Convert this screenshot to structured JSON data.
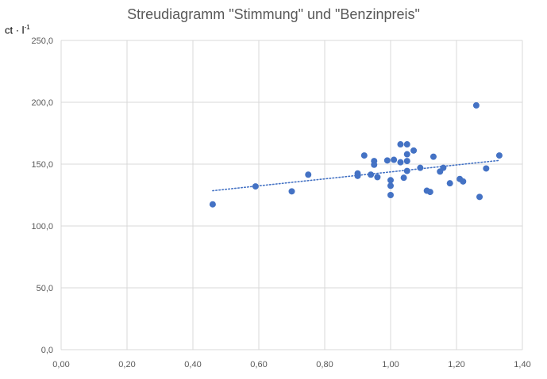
{
  "chart_data": {
    "type": "scatter",
    "title": "Streudiagramm \"Stimmung\" und \"Benzinpreis\"",
    "y_unit_base": "ct · l",
    "y_unit_exp": "-1",
    "xlim": [
      0,
      1.4
    ],
    "ylim": [
      0,
      250
    ],
    "x_ticks": [
      "0,00",
      "0,20",
      "0,40",
      "0,60",
      "0,80",
      "1,00",
      "1,20",
      "1,40"
    ],
    "y_ticks": [
      "0,0",
      "50,0",
      "100,0",
      "150,0",
      "200,0",
      "250,0"
    ],
    "grid": true,
    "trendline": {
      "style": "dotted linear",
      "x": [
        0.46,
        1.33
      ],
      "y": [
        128.5,
        153
      ]
    },
    "points": [
      {
        "x": 0.46,
        "y": 117.5
      },
      {
        "x": 0.59,
        "y": 132.0
      },
      {
        "x": 0.7,
        "y": 128.0
      },
      {
        "x": 0.75,
        "y": 141.5
      },
      {
        "x": 0.9,
        "y": 142.5
      },
      {
        "x": 0.9,
        "y": 140.5
      },
      {
        "x": 0.92,
        "y": 157.0
      },
      {
        "x": 0.94,
        "y": 141.5
      },
      {
        "x": 0.95,
        "y": 152.5
      },
      {
        "x": 0.95,
        "y": 149.5
      },
      {
        "x": 0.96,
        "y": 139.5
      },
      {
        "x": 0.99,
        "y": 153.0
      },
      {
        "x": 1.0,
        "y": 137.0
      },
      {
        "x": 1.0,
        "y": 132.5
      },
      {
        "x": 1.0,
        "y": 125.0
      },
      {
        "x": 1.01,
        "y": 153.5
      },
      {
        "x": 1.03,
        "y": 166.0
      },
      {
        "x": 1.03,
        "y": 151.5
      },
      {
        "x": 1.04,
        "y": 139.0
      },
      {
        "x": 1.05,
        "y": 166.0
      },
      {
        "x": 1.05,
        "y": 158.0
      },
      {
        "x": 1.05,
        "y": 152.5
      },
      {
        "x": 1.05,
        "y": 144.5
      },
      {
        "x": 1.07,
        "y": 161.0
      },
      {
        "x": 1.09,
        "y": 147.0
      },
      {
        "x": 1.11,
        "y": 128.5
      },
      {
        "x": 1.12,
        "y": 127.5
      },
      {
        "x": 1.13,
        "y": 156.0
      },
      {
        "x": 1.15,
        "y": 144.0
      },
      {
        "x": 1.16,
        "y": 147.0
      },
      {
        "x": 1.18,
        "y": 134.5
      },
      {
        "x": 1.21,
        "y": 138.0
      },
      {
        "x": 1.22,
        "y": 136.0
      },
      {
        "x": 1.26,
        "y": 197.5
      },
      {
        "x": 1.27,
        "y": 123.5
      },
      {
        "x": 1.29,
        "y": 146.5
      },
      {
        "x": 1.33,
        "y": 157.0
      }
    ],
    "colors": {
      "marker": "#4472c4",
      "trendline": "#4472c4",
      "grid": "#d9d9d9",
      "text": "#595959"
    }
  }
}
